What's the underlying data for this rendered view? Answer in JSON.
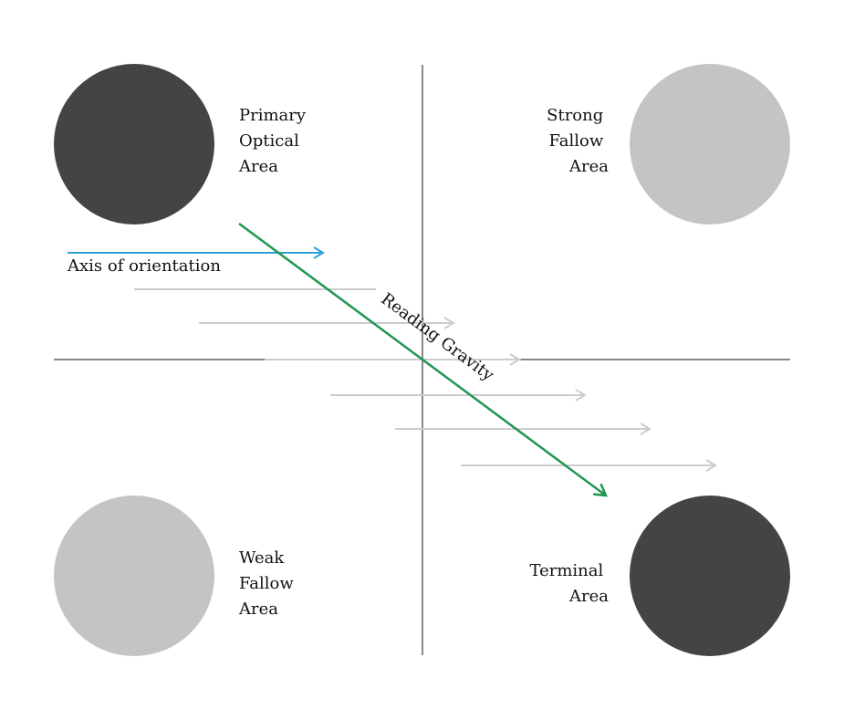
{
  "colors": {
    "strong_circle": "#444444",
    "weak_circle": "#c4c4c4",
    "axis_arrow": "#2a9fd6",
    "gravity_arrow": "#1e9650",
    "guide_arrow": "#cccccc",
    "divider": "#111111"
  },
  "quadrants": {
    "primary": {
      "lines": [
        "Primary",
        "Optical",
        "Area"
      ]
    },
    "strong_fallow": {
      "lines": [
        "Strong",
        "Fallow",
        "Area"
      ]
    },
    "weak_fallow": {
      "lines": [
        "Weak",
        "Fallow",
        "Area"
      ]
    },
    "terminal": {
      "lines": [
        "Terminal",
        "Area"
      ]
    }
  },
  "axis_of_orientation": {
    "label": "Axis of orientation"
  },
  "reading_gravity": {
    "label": "Reading Gravity"
  }
}
